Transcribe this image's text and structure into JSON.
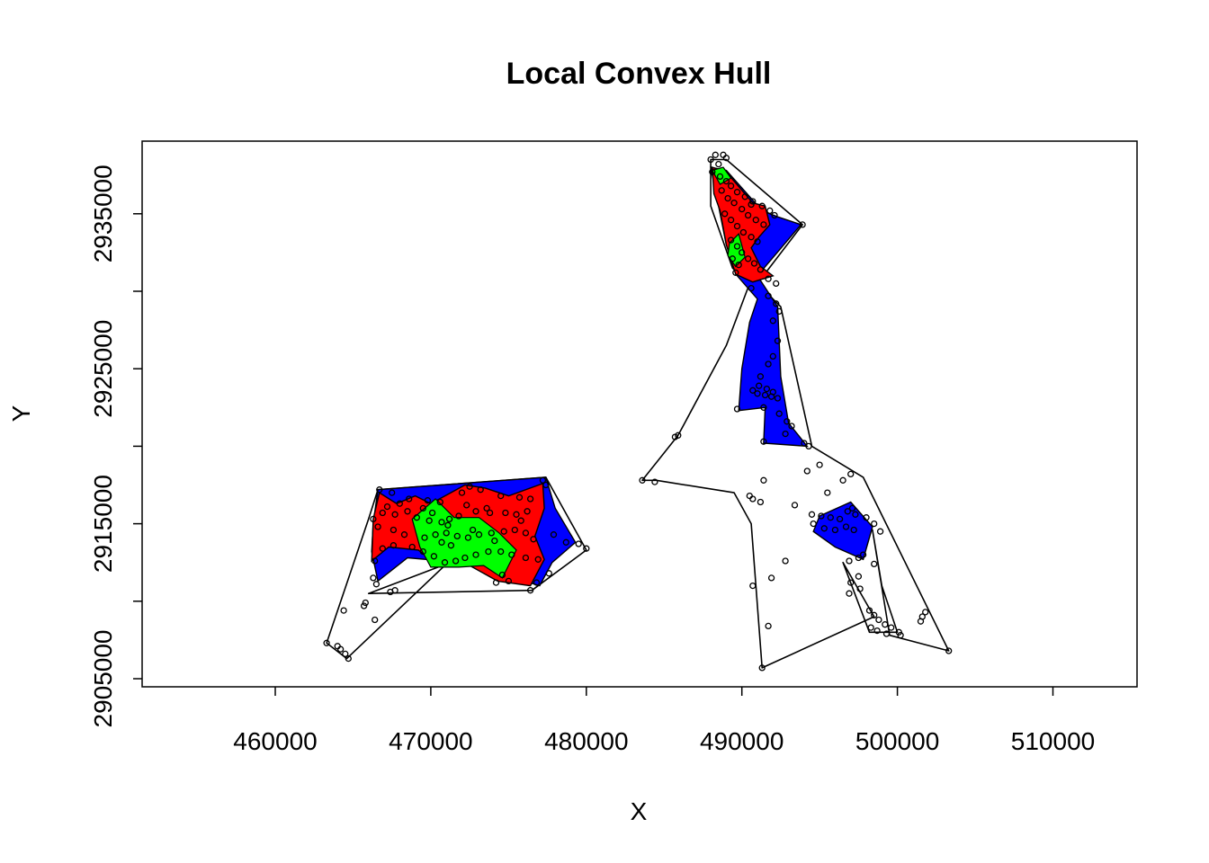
{
  "chart_data": {
    "type": "scatter",
    "title": "Local Convex Hull",
    "xlabel": "X",
    "ylabel": "Y",
    "xlim": [
      451000,
      515000
    ],
    "ylim": [
      2904500,
      2939500
    ],
    "xticks": [
      460000,
      470000,
      480000,
      490000,
      500000,
      510000
    ],
    "yticks": [
      2905000,
      2910000,
      2915000,
      2920000,
      2925000,
      2930000,
      2935000
    ],
    "ytick_labels": [
      "2905000",
      "",
      "2915000",
      "",
      "2925000",
      "",
      "2935000"
    ],
    "grid": false,
    "legend": "none",
    "colors": {
      "isopleth_inner": "#00ff00",
      "isopleth_middle": "#ff0000",
      "isopleth_outer": "#0000ff",
      "outline": "#000000",
      "points": "#000000"
    },
    "outer_boundary": [
      [
        [
          466600,
          2917200
        ],
        [
          477400,
          2918000
        ],
        [
          480000,
          2913300
        ],
        [
          476500,
          2910700
        ],
        [
          466000,
          2910500
        ],
        [
          471000,
          2912400
        ],
        [
          464600,
          2906300
        ],
        [
          463300,
          2907300
        ],
        [
          466000,
          2915300
        ]
      ],
      [
        [
          488000,
          2938500
        ],
        [
          489000,
          2938500
        ],
        [
          493900,
          2934300
        ],
        [
          491000,
          2930500
        ],
        [
          492500,
          2929000
        ],
        [
          494500,
          2920000
        ],
        [
          497800,
          2918000
        ],
        [
          503300,
          2906800
        ],
        [
          499500,
          2907800
        ],
        [
          498400,
          2914600
        ],
        [
          499000,
          2911000
        ],
        [
          500000,
          2908000
        ],
        [
          498200,
          2908000
        ],
        [
          496500,
          2912500
        ],
        [
          498500,
          2909000
        ],
        [
          491300,
          2905700
        ],
        [
          490600,
          2915000
        ],
        [
          489500,
          2917000
        ],
        [
          484500,
          2917800
        ],
        [
          483600,
          2917800
        ],
        [
          485900,
          2920700
        ],
        [
          489000,
          2926500
        ],
        [
          490500,
          2930500
        ],
        [
          489400,
          2931500
        ],
        [
          488000,
          2935500
        ]
      ]
    ],
    "isopleth_outer": [
      [
        [
          466600,
          2917200
        ],
        [
          477400,
          2918000
        ],
        [
          478000,
          2916000
        ],
        [
          479300,
          2913800
        ],
        [
          477800,
          2912500
        ],
        [
          477000,
          2911000
        ],
        [
          472000,
          2912500
        ],
        [
          468500,
          2912800
        ],
        [
          466600,
          2911300
        ],
        [
          466200,
          2913200
        ],
        [
          466300,
          2915000
        ]
      ],
      [
        [
          488000,
          2938000
        ],
        [
          489000,
          2937800
        ],
        [
          491300,
          2935200
        ],
        [
          492300,
          2934800
        ],
        [
          493800,
          2934300
        ],
        [
          491000,
          2931000
        ],
        [
          492300,
          2929000
        ],
        [
          492500,
          2924500
        ],
        [
          493000,
          2921500
        ],
        [
          494200,
          2920000
        ],
        [
          491400,
          2920200
        ],
        [
          491500,
          2922500
        ],
        [
          489800,
          2922300
        ],
        [
          490000,
          2925000
        ],
        [
          490500,
          2928000
        ],
        [
          491000,
          2929500
        ],
        [
          489700,
          2931000
        ],
        [
          489000,
          2933000
        ],
        [
          488500,
          2935500
        ]
      ],
      [
        [
          495000,
          2915500
        ],
        [
          497000,
          2916400
        ],
        [
          498400,
          2914800
        ],
        [
          497800,
          2912700
        ],
        [
          496000,
          2913500
        ],
        [
          494600,
          2914500
        ]
      ]
    ],
    "isopleth_middle": [
      [
        [
          466700,
          2917000
        ],
        [
          467800,
          2916300
        ],
        [
          469000,
          2916800
        ],
        [
          470000,
          2916300
        ],
        [
          472200,
          2917500
        ],
        [
          473500,
          2917300
        ],
        [
          475000,
          2916800
        ],
        [
          477200,
          2917600
        ],
        [
          477300,
          2916000
        ],
        [
          476700,
          2914200
        ],
        [
          477300,
          2912700
        ],
        [
          476400,
          2911000
        ],
        [
          474300,
          2911300
        ],
        [
          472500,
          2912300
        ],
        [
          470500,
          2912300
        ],
        [
          469200,
          2913300
        ],
        [
          467300,
          2913500
        ],
        [
          466200,
          2912600
        ],
        [
          466300,
          2915300
        ]
      ],
      [
        [
          488100,
          2938000
        ],
        [
          489000,
          2937700
        ],
        [
          490700,
          2935700
        ],
        [
          491500,
          2935500
        ],
        [
          491800,
          2934300
        ],
        [
          491100,
          2933500
        ],
        [
          490600,
          2932800
        ],
        [
          491200,
          2931600
        ],
        [
          492000,
          2931000
        ],
        [
          490700,
          2930600
        ],
        [
          489600,
          2931100
        ],
        [
          489000,
          2933000
        ],
        [
          488600,
          2935200
        ],
        [
          488200,
          2936300
        ]
      ]
    ],
    "isopleth_inner": [
      [
        [
          468800,
          2915300
        ],
        [
          470300,
          2916600
        ],
        [
          471500,
          2915400
        ],
        [
          473100,
          2915400
        ],
        [
          474400,
          2914400
        ],
        [
          475500,
          2913300
        ],
        [
          474600,
          2911500
        ],
        [
          473400,
          2912300
        ],
        [
          471800,
          2912200
        ],
        [
          470000,
          2912200
        ],
        [
          469300,
          2913500
        ]
      ],
      [
        [
          489200,
          2933100
        ],
        [
          489800,
          2933700
        ],
        [
          490200,
          2932200
        ],
        [
          489600,
          2931600
        ],
        [
          489100,
          2932300
        ]
      ],
      [
        [
          488100,
          2937800
        ],
        [
          488800,
          2938000
        ],
        [
          489300,
          2937300
        ],
        [
          488600,
          2936900
        ]
      ]
    ],
    "points": [
      [
        466700,
        2917200
      ],
      [
        467500,
        2917000
      ],
      [
        468600,
        2916600
      ],
      [
        469800,
        2916500
      ],
      [
        470600,
        2916400
      ],
      [
        472000,
        2917000
      ],
      [
        472500,
        2917400
      ],
      [
        473200,
        2917200
      ],
      [
        474500,
        2916800
      ],
      [
        475700,
        2916700
      ],
      [
        476400,
        2916600
      ],
      [
        477200,
        2917800
      ],
      [
        477400,
        2917500
      ],
      [
        476200,
        2915800
      ],
      [
        475500,
        2915600
      ],
      [
        474800,
        2915700
      ],
      [
        473800,
        2915700
      ],
      [
        472900,
        2915800
      ],
      [
        471800,
        2915500
      ],
      [
        471200,
        2915300
      ],
      [
        470700,
        2915100
      ],
      [
        469900,
        2915200
      ],
      [
        469100,
        2915400
      ],
      [
        468500,
        2915800
      ],
      [
        467700,
        2915600
      ],
      [
        466900,
        2915700
      ],
      [
        466300,
        2915300
      ],
      [
        466600,
        2914800
      ],
      [
        467600,
        2914600
      ],
      [
        468300,
        2914300
      ],
      [
        469600,
        2914100
      ],
      [
        470300,
        2914300
      ],
      [
        471000,
        2914400
      ],
      [
        471700,
        2914200
      ],
      [
        472400,
        2914100
      ],
      [
        473100,
        2914300
      ],
      [
        473900,
        2914400
      ],
      [
        474700,
        2914500
      ],
      [
        475400,
        2914600
      ],
      [
        476100,
        2914400
      ],
      [
        476600,
        2914000
      ],
      [
        477900,
        2914300
      ],
      [
        478700,
        2913800
      ],
      [
        479500,
        2913700
      ],
      [
        480000,
        2913400
      ],
      [
        476900,
        2912700
      ],
      [
        476100,
        2912800
      ],
      [
        475200,
        2913000
      ],
      [
        474500,
        2913200
      ],
      [
        473700,
        2913200
      ],
      [
        472900,
        2913000
      ],
      [
        472200,
        2912800
      ],
      [
        471600,
        2912600
      ],
      [
        470900,
        2912500
      ],
      [
        470200,
        2912900
      ],
      [
        469500,
        2913200
      ],
      [
        468800,
        2913500
      ],
      [
        467600,
        2913600
      ],
      [
        466900,
        2913400
      ],
      [
        466400,
        2912600
      ],
      [
        466300,
        2911500
      ],
      [
        466500,
        2911100
      ],
      [
        467700,
        2910700
      ],
      [
        467400,
        2910600
      ],
      [
        465800,
        2909900
      ],
      [
        465700,
        2909700
      ],
      [
        464400,
        2909400
      ],
      [
        466400,
        2908800
      ],
      [
        463300,
        2907300
      ],
      [
        464000,
        2907100
      ],
      [
        464200,
        2906900
      ],
      [
        464500,
        2906600
      ],
      [
        464700,
        2906300
      ],
      [
        474600,
        2911700
      ],
      [
        475000,
        2911300
      ],
      [
        474200,
        2911200
      ],
      [
        476400,
        2910700
      ],
      [
        476800,
        2911200
      ],
      [
        477600,
        2911800
      ],
      [
        472300,
        2916200
      ],
      [
        473600,
        2916000
      ],
      [
        470100,
        2915700
      ],
      [
        470700,
        2913800
      ],
      [
        471300,
        2913600
      ],
      [
        472700,
        2914600
      ],
      [
        471100,
        2914900
      ],
      [
        469500,
        2916000
      ],
      [
        468000,
        2916300
      ],
      [
        467200,
        2916100
      ],
      [
        474100,
        2913900
      ],
      [
        475800,
        2915200
      ],
      [
        488000,
        2938500
      ],
      [
        488300,
        2938800
      ],
      [
        488800,
        2938800
      ],
      [
        489000,
        2938600
      ],
      [
        488500,
        2938200
      ],
      [
        488100,
        2937700
      ],
      [
        488600,
        2937400
      ],
      [
        489000,
        2937100
      ],
      [
        489300,
        2936800
      ],
      [
        489700,
        2936400
      ],
      [
        490200,
        2936100
      ],
      [
        490700,
        2935800
      ],
      [
        491300,
        2935500
      ],
      [
        491800,
        2935200
      ],
      [
        492100,
        2934900
      ],
      [
        488700,
        2936500
      ],
      [
        489100,
        2936000
      ],
      [
        489500,
        2935700
      ],
      [
        490000,
        2935300
      ],
      [
        490400,
        2934900
      ],
      [
        490900,
        2934600
      ],
      [
        491400,
        2934300
      ],
      [
        488900,
        2935000
      ],
      [
        489300,
        2934600
      ],
      [
        489700,
        2934200
      ],
      [
        490100,
        2933800
      ],
      [
        490600,
        2933500
      ],
      [
        491000,
        2933200
      ],
      [
        489300,
        2933300
      ],
      [
        489700,
        2932900
      ],
      [
        490000,
        2932500
      ],
      [
        490400,
        2932100
      ],
      [
        490800,
        2931800
      ],
      [
        491200,
        2931400
      ],
      [
        489400,
        2932100
      ],
      [
        489800,
        2931700
      ],
      [
        489600,
        2931200
      ],
      [
        493900,
        2934300
      ],
      [
        490600,
        2935600
      ],
      [
        491700,
        2930800
      ],
      [
        492200,
        2930500
      ],
      [
        490600,
        2930200
      ],
      [
        491700,
        2929700
      ],
      [
        492200,
        2929200
      ],
      [
        492400,
        2928700
      ],
      [
        492000,
        2928100
      ],
      [
        492300,
        2926800
      ],
      [
        492000,
        2925800
      ],
      [
        491700,
        2925300
      ],
      [
        491200,
        2924500
      ],
      [
        490700,
        2923600
      ],
      [
        491000,
        2923400
      ],
      [
        491500,
        2923300
      ],
      [
        491900,
        2923200
      ],
      [
        492300,
        2923100
      ],
      [
        491100,
        2923900
      ],
      [
        491600,
        2923700
      ],
      [
        492000,
        2923500
      ],
      [
        489700,
        2922400
      ],
      [
        491400,
        2922500
      ],
      [
        492400,
        2922100
      ],
      [
        492900,
        2921600
      ],
      [
        493200,
        2921300
      ],
      [
        492800,
        2920800
      ],
      [
        494000,
        2920200
      ],
      [
        494300,
        2920000
      ],
      [
        491400,
        2920300
      ],
      [
        485900,
        2920700
      ],
      [
        485700,
        2920600
      ],
      [
        483600,
        2917800
      ],
      [
        484400,
        2917700
      ],
      [
        491400,
        2917800
      ],
      [
        490500,
        2916800
      ],
      [
        490700,
        2916600
      ],
      [
        491200,
        2916400
      ],
      [
        493400,
        2916200
      ],
      [
        495000,
        2918800
      ],
      [
        495500,
        2917000
      ],
      [
        497000,
        2918200
      ],
      [
        494500,
        2915600
      ],
      [
        495100,
        2915500
      ],
      [
        495700,
        2915400
      ],
      [
        496300,
        2915300
      ],
      [
        496800,
        2915800
      ],
      [
        497100,
        2916000
      ],
      [
        497300,
        2915600
      ],
      [
        498000,
        2915400
      ],
      [
        498500,
        2915000
      ],
      [
        498900,
        2914500
      ],
      [
        496700,
        2914800
      ],
      [
        497200,
        2914600
      ],
      [
        494600,
        2915000
      ],
      [
        495300,
        2914700
      ],
      [
        496000,
        2914600
      ],
      [
        497800,
        2913000
      ],
      [
        497500,
        2912800
      ],
      [
        496900,
        2912600
      ],
      [
        498500,
        2912400
      ],
      [
        497500,
        2911600
      ],
      [
        497000,
        2911200
      ],
      [
        497600,
        2910800
      ],
      [
        496900,
        2910500
      ],
      [
        498200,
        2909400
      ],
      [
        498500,
        2909100
      ],
      [
        498800,
        2908800
      ],
      [
        499200,
        2908500
      ],
      [
        499600,
        2908300
      ],
      [
        500100,
        2908000
      ],
      [
        500200,
        2907800
      ],
      [
        499300,
        2907900
      ],
      [
        498700,
        2908100
      ],
      [
        498300,
        2908300
      ],
      [
        501500,
        2908700
      ],
      [
        501800,
        2909300
      ],
      [
        501600,
        2909000
      ],
      [
        503300,
        2906800
      ],
      [
        491300,
        2905700
      ],
      [
        491700,
        2908400
      ],
      [
        490700,
        2911000
      ],
      [
        491900,
        2911500
      ],
      [
        492800,
        2912600
      ],
      [
        494200,
        2918400
      ],
      [
        496500,
        2917800
      ]
    ]
  }
}
